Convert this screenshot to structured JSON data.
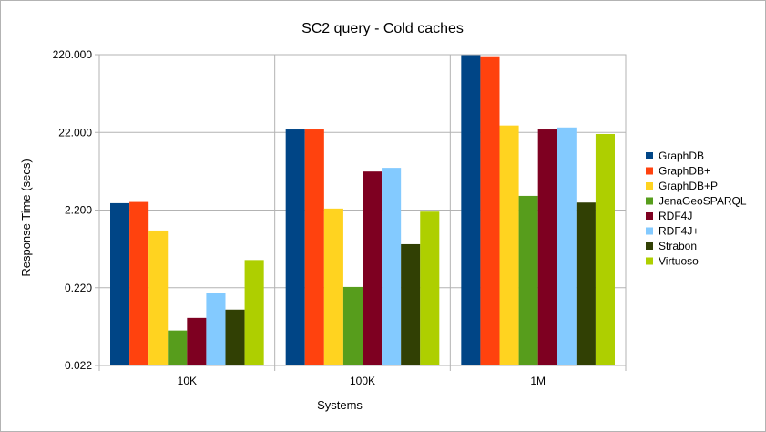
{
  "chart_data": {
    "type": "bar",
    "title": "SC2 query - Cold caches",
    "xlabel": "Systems",
    "ylabel": "Response Time (secs)",
    "y_scale": "log10",
    "ylim": [
      0.022,
      220
    ],
    "y_ticks": [
      0.022,
      0.22,
      2.2,
      22,
      220
    ],
    "y_tick_labels": [
      "0.022",
      "0.220",
      "2.200",
      "22.000",
      "220.000"
    ],
    "grid": true,
    "legend_position": "right",
    "categories": [
      "10K",
      "100K",
      "1M"
    ],
    "series": [
      {
        "name": "GraphDB",
        "color": "#004586",
        "values": [
          2.7,
          24,
          220
        ]
      },
      {
        "name": "GraphDB+",
        "color": "#ff420e",
        "values": [
          2.8,
          24,
          210
        ]
      },
      {
        "name": "GraphDB+P",
        "color": "#ffd320",
        "values": [
          1.2,
          2.3,
          27
        ]
      },
      {
        "name": "JenaGeoSPARQL",
        "color": "#579d1c",
        "values": [
          0.062,
          0.225,
          3.35
        ]
      },
      {
        "name": "RDF4J",
        "color": "#7e0021",
        "values": [
          0.09,
          6.9,
          24
        ]
      },
      {
        "name": "RDF4J+",
        "color": "#83caff",
        "values": [
          0.19,
          7.7,
          25.5
        ]
      },
      {
        "name": "Strabon",
        "color": "#314004",
        "values": [
          0.115,
          0.8,
          2.75
        ]
      },
      {
        "name": "Virtuoso",
        "color": "#aecf00",
        "values": [
          0.5,
          2.1,
          21
        ]
      }
    ]
  }
}
